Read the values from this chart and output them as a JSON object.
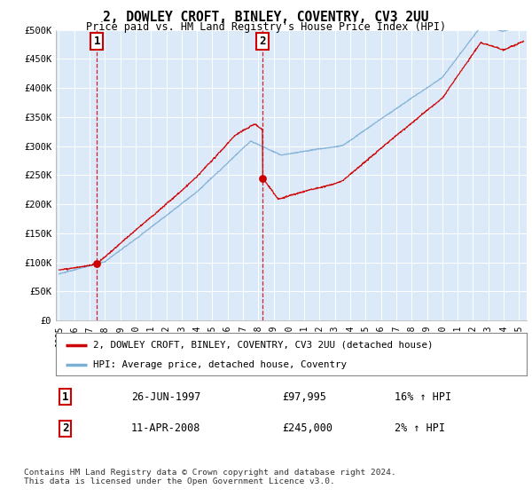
{
  "title": "2, DOWLEY CROFT, BINLEY, COVENTRY, CV3 2UU",
  "subtitle": "Price paid vs. HM Land Registry's House Price Index (HPI)",
  "plot_bg_color": "#dce9f8",
  "ylim": [
    0,
    500000
  ],
  "yticks": [
    0,
    50000,
    100000,
    150000,
    200000,
    250000,
    300000,
    350000,
    400000,
    450000,
    500000
  ],
  "ytick_labels": [
    "£0",
    "£50K",
    "£100K",
    "£150K",
    "£200K",
    "£250K",
    "£300K",
    "£350K",
    "£400K",
    "£450K",
    "£500K"
  ],
  "xlim_start": 1994.8,
  "xlim_end": 2025.5,
  "xticks": [
    1995,
    1996,
    1997,
    1998,
    1999,
    2000,
    2001,
    2002,
    2003,
    2004,
    2005,
    2006,
    2007,
    2008,
    2009,
    2010,
    2011,
    2012,
    2013,
    2014,
    2015,
    2016,
    2017,
    2018,
    2019,
    2020,
    2021,
    2022,
    2023,
    2024,
    2025
  ],
  "sale1_x": 1997.48,
  "sale1_y": 97995,
  "sale2_x": 2008.27,
  "sale2_y": 245000,
  "sale1_date": "26-JUN-1997",
  "sale1_price": "£97,995",
  "sale1_hpi": "16% ↑ HPI",
  "sale2_date": "11-APR-2008",
  "sale2_price": "£245,000",
  "sale2_hpi": "2% ↑ HPI",
  "property_label": "2, DOWLEY CROFT, BINLEY, COVENTRY, CV3 2UU (detached house)",
  "hpi_label": "HPI: Average price, detached house, Coventry",
  "footer": "Contains HM Land Registry data © Crown copyright and database right 2024.\nThis data is licensed under the Open Government Licence v3.0.",
  "line_color_property": "#cc0000",
  "line_color_hpi": "#7bafd4",
  "vline_color": "#cc0000",
  "dot_color": "#cc0000",
  "grid_color": "#c8d8e8"
}
